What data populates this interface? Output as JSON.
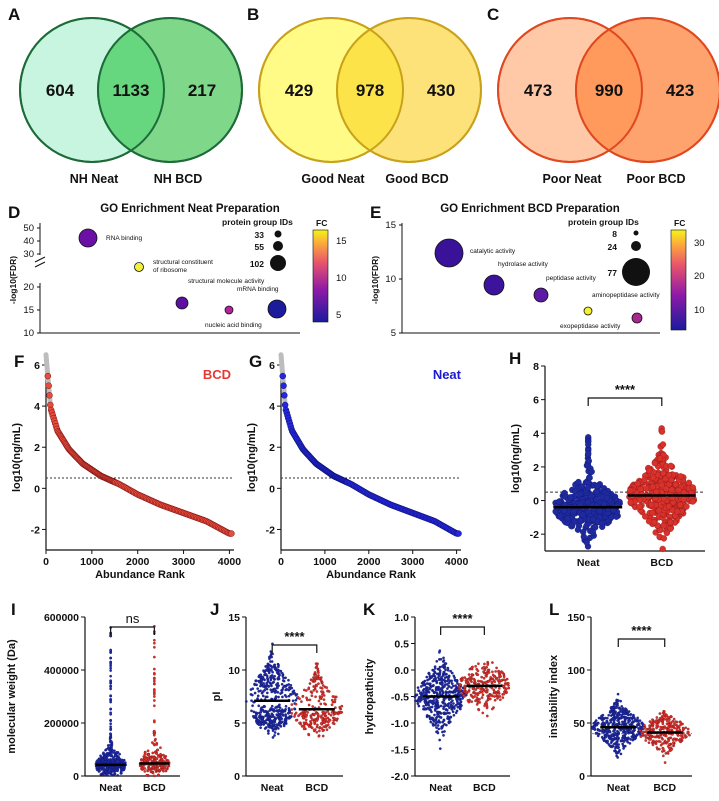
{
  "panel_letters": [
    "A",
    "B",
    "C",
    "D",
    "E",
    "F",
    "G",
    "H",
    "I",
    "J",
    "K",
    "L"
  ],
  "venn": [
    {
      "left_label": "NH Neat",
      "right_label": "NH BCD",
      "left_only": "604",
      "overlap": "1133",
      "right_only": "217",
      "left_fill": "#c8f5e0",
      "right_fill": "#7fd88a",
      "overlap_fill": "#66d77e",
      "stroke": "#1e6b3a"
    },
    {
      "left_label": "Good Neat",
      "right_label": "Good BCD",
      "left_only": "429",
      "overlap": "978",
      "right_only": "430",
      "left_fill": "#fffb86",
      "right_fill": "#fde27a",
      "overlap_fill": "#fde34a",
      "stroke": "#c9a21a"
    },
    {
      "left_label": "Poor Neat",
      "right_label": "Poor BCD",
      "left_only": "473",
      "overlap": "990",
      "right_only": "423",
      "left_fill": "#ffc9a8",
      "right_fill": "#ffa36e",
      "overlap_fill": "#ff9a5c",
      "stroke": "#e0481f"
    }
  ],
  "chart_data": [
    {
      "panel": "D",
      "type": "scatter",
      "title": "GO Enrichment  Neat Preparation",
      "ylabel": "-log10(FDR)",
      "yticks_top": [
        "30",
        "40",
        "50"
      ],
      "yticks_bottom": [
        "10",
        "15",
        "20"
      ],
      "size_legend_title": "protein group IDs",
      "size_legend": [
        "33",
        "55",
        "102"
      ],
      "colorbar_title": "FC",
      "colorbar_ticks": [
        "5",
        "10",
        "15"
      ],
      "points": [
        {
          "term": "RNA binding",
          "fdr": 43,
          "fc": 9
        },
        {
          "term": "structural constituent of ribosome",
          "fdr": 26,
          "fc": 16.5
        },
        {
          "term": "structural molecule activity",
          "fdr": 16,
          "fc": 8
        },
        {
          "term": "mRNA binding",
          "fdr": 14.8,
          "fc": 11
        },
        {
          "term": "nucleic acid binding",
          "fdr": 14.8,
          "fc": 3
        }
      ]
    },
    {
      "panel": "E",
      "type": "scatter",
      "title": "GO Enrichment  BCD Preparation",
      "ylabel": "-log10(FDR)",
      "yticks": [
        "5",
        "10",
        "15"
      ],
      "size_legend_title": "protein group IDs",
      "size_legend": [
        "8",
        "24",
        "77"
      ],
      "colorbar_title": "FC",
      "colorbar_ticks": [
        "10",
        "20",
        "30"
      ],
      "points": [
        {
          "term": "catalytic activity",
          "fdr": 12.6,
          "fc": 5
        },
        {
          "term": "hydrolase activity",
          "fdr": 9.6,
          "fc": 6
        },
        {
          "term": "peptidase activity",
          "fdr": 8.7,
          "fc": 9
        },
        {
          "term": "aminopeptidase activity",
          "fdr": 7.1,
          "fc": 33
        },
        {
          "term": "exopeptidase activity",
          "fdr": 6.4,
          "fc": 20
        }
      ]
    },
    {
      "panel": "F",
      "type": "scatter",
      "label": "BCD",
      "label_color": "#e53935",
      "xlabel": "Abundance Rank",
      "ylabel": "log10(ng/mL)",
      "xlim": [
        0,
        4100
      ],
      "ylim": [
        -3,
        6
      ],
      "xticks": [
        "0",
        "1000",
        "2000",
        "3000",
        "4000"
      ],
      "yticks": [
        "-2",
        "0",
        "2",
        "4",
        "6"
      ],
      "threshold": 0.5,
      "curve": [
        [
          0,
          6.5
        ],
        [
          100,
          3.9
        ],
        [
          250,
          2.8
        ],
        [
          500,
          1.9
        ],
        [
          800,
          1.2
        ],
        [
          1200,
          0.6
        ],
        [
          1600,
          0.2
        ],
        [
          2000,
          -0.3
        ],
        [
          2500,
          -0.8
        ],
        [
          3000,
          -1.2
        ],
        [
          3500,
          -1.6
        ],
        [
          4000,
          -2.2
        ]
      ]
    },
    {
      "panel": "G",
      "type": "scatter",
      "label": "Neat",
      "label_color": "#1a1ad6",
      "xlabel": "Abundance Rank",
      "ylabel": "log10(ng/mL)",
      "xlim": [
        0,
        4100
      ],
      "ylim": [
        -3,
        6
      ],
      "xticks": [
        "0",
        "1000",
        "2000",
        "3000",
        "4000"
      ],
      "yticks": [
        "-2",
        "0",
        "2",
        "4",
        "6"
      ],
      "threshold": 0.5,
      "curve": [
        [
          0,
          6.5
        ],
        [
          100,
          3.9
        ],
        [
          250,
          2.8
        ],
        [
          500,
          1.9
        ],
        [
          800,
          1.2
        ],
        [
          1200,
          0.6
        ],
        [
          1600,
          0.2
        ],
        [
          2000,
          -0.3
        ],
        [
          2500,
          -0.8
        ],
        [
          3000,
          -1.2
        ],
        [
          3500,
          -1.6
        ],
        [
          4000,
          -2.2
        ]
      ]
    },
    {
      "panel": "H",
      "type": "scatter",
      "ylabel": "log10(ng/mL)",
      "categories": [
        "Neat",
        "BCD"
      ],
      "ylim": [
        -3,
        8
      ],
      "yticks": [
        "-2",
        "0",
        "2",
        "4",
        "6",
        "8"
      ],
      "threshold": 0.5,
      "medians": [
        -0.4,
        0.3
      ],
      "significance": "****"
    },
    {
      "panel": "I",
      "type": "scatter",
      "ylabel": "molecular weight (Da)",
      "categories": [
        "Neat",
        "BCD"
      ],
      "ylim": [
        0,
        600000
      ],
      "yticks": [
        "0",
        "200000",
        "400000",
        "600000"
      ],
      "medians": [
        42000,
        47000
      ],
      "significance": "ns"
    },
    {
      "panel": "J",
      "type": "scatter",
      "ylabel": "pI",
      "categories": [
        "Neat",
        "BCD"
      ],
      "ylim": [
        0,
        15
      ],
      "yticks": [
        "0",
        "5",
        "10",
        "15"
      ],
      "medians": [
        7.1,
        6.3
      ],
      "significance": "****"
    },
    {
      "panel": "K",
      "type": "scatter",
      "ylabel": "hydropathicity",
      "categories": [
        "Neat",
        "BCD"
      ],
      "ylim": [
        -2,
        1
      ],
      "yticks": [
        "-2.0",
        "-1.5",
        "-1.0",
        "-0.5",
        "0.0",
        "0.5",
        "1.0"
      ],
      "medians": [
        -0.5,
        -0.3
      ],
      "significance": "****"
    },
    {
      "panel": "L",
      "type": "scatter",
      "ylabel": "instability index",
      "categories": [
        "Neat",
        "BCD"
      ],
      "ylim": [
        0,
        150
      ],
      "yticks": [
        "0",
        "50",
        "100",
        "150"
      ],
      "threshold": 40,
      "medians": [
        46,
        41
      ],
      "significance": "****"
    }
  ],
  "colors": {
    "neat": "#1f2a9e",
    "bcd": "#d9312b",
    "neat_edge": "#0b1270",
    "bcd_edge": "#7a1010",
    "grey": "#9e9e9e"
  }
}
